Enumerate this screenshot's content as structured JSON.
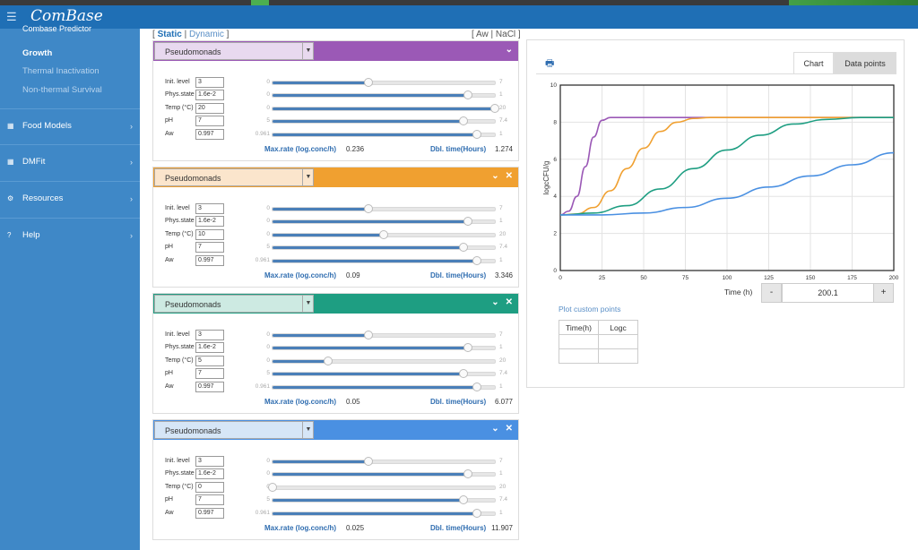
{
  "app": {
    "title": "ComBase"
  },
  "sidebar": {
    "section": "Combase Predictor",
    "subitems": [
      "Growth",
      "Thermal Inactivation",
      "Non-thermal Survival"
    ],
    "items": [
      {
        "label": "Food Models",
        "icon": "grid-icon"
      },
      {
        "label": "DMFit",
        "icon": "grid-icon"
      },
      {
        "label": "Resources",
        "icon": "gears-icon"
      },
      {
        "label": "Help",
        "icon": "question-icon"
      }
    ]
  },
  "mode": {
    "open": "[",
    "static": "Static",
    "sep": "|",
    "dynamic": "Dynamic",
    "close": "]"
  },
  "mode2": {
    "open": "[",
    "aw": "Aw",
    "sep": "|",
    "nacl": "NaCl",
    "close": "]"
  },
  "param_labels": [
    "Init. level",
    "Phys.state",
    "Temp (°C)",
    "pH",
    "Aw"
  ],
  "rate_labels": {
    "maxrate": "Max.rate (log.conc/h)",
    "dbltime": "Dbl. time(Hours)"
  },
  "panels": [
    {
      "organism": "Pseudomonads",
      "color": "#9b59b6",
      "light": "#e8d9ef",
      "controls": [
        "⌄"
      ],
      "values": [
        "3",
        "1.6e-2",
        "20",
        "7",
        "0.997"
      ],
      "mins": [
        "0",
        "0",
        "0",
        "5",
        "0.961"
      ],
      "maxs": [
        "7",
        "1",
        "20",
        "7.4",
        "1"
      ],
      "levels": [
        0.43,
        0.88,
        1.0,
        0.86,
        0.92
      ],
      "maxrate": "0.236",
      "dbltime": "1.274"
    },
    {
      "organism": "Pseudomonads",
      "color": "#f0a030",
      "light": "#fbe5cc",
      "controls": [
        "⌄",
        "✕"
      ],
      "values": [
        "3",
        "1.6e-2",
        "10",
        "7",
        "0.997"
      ],
      "mins": [
        "0",
        "0",
        "0",
        "5",
        "0.961"
      ],
      "maxs": [
        "7",
        "1",
        "20",
        "7.4",
        "1"
      ],
      "levels": [
        0.43,
        0.88,
        0.5,
        0.86,
        0.92
      ],
      "maxrate": "0.09",
      "dbltime": "3.346"
    },
    {
      "organism": "Pseudomonads",
      "color": "#1e9e82",
      "light": "#cdeae2",
      "controls": [
        "⌄",
        "✕"
      ],
      "values": [
        "3",
        "1.6e-2",
        "5",
        "7",
        "0.997"
      ],
      "mins": [
        "0",
        "0",
        "0",
        "5",
        "0.961"
      ],
      "maxs": [
        "7",
        "1",
        "20",
        "7.4",
        "1"
      ],
      "levels": [
        0.43,
        0.88,
        0.25,
        0.86,
        0.92
      ],
      "maxrate": "0.05",
      "dbltime": "6.077"
    },
    {
      "organism": "Pseudomonads",
      "color": "#4a90e2",
      "light": "#d6e6f7",
      "controls": [
        "⌄",
        "✕"
      ],
      "values": [
        "3",
        "1.6e-2",
        "0",
        "7",
        "0.997"
      ],
      "mins": [
        "0",
        "0",
        "0",
        "5",
        "0.961"
      ],
      "maxs": [
        "7",
        "1",
        "20",
        "7.4",
        "1"
      ],
      "levels": [
        0.43,
        0.88,
        0.0,
        0.86,
        0.92
      ],
      "maxrate": "0.025",
      "dbltime": "11.907"
    }
  ],
  "tabs": {
    "chart": "Chart",
    "datapoints": "Data points"
  },
  "time": {
    "label": "Time (h)",
    "minus": "-",
    "value": "200.1",
    "plus": "+"
  },
  "custom": {
    "link": "Plot custom points",
    "headers": [
      "Time(h)",
      "Logc"
    ]
  },
  "chart_data": {
    "type": "line",
    "xlabel": "",
    "ylabel": "logcCFU/g",
    "xlim": [
      0,
      200
    ],
    "ylim": [
      0,
      10
    ],
    "xticks": [
      0,
      25,
      50,
      75,
      100,
      125,
      150,
      175,
      200
    ],
    "yticks": [
      0,
      2,
      4,
      6,
      8,
      10
    ],
    "grid": true,
    "series": [
      {
        "color": "#9b59b6",
        "x": [
          0,
          5,
          10,
          15,
          20,
          25,
          30,
          35,
          200
        ],
        "y": [
          3.0,
          3.2,
          4.0,
          5.6,
          7.2,
          8.1,
          8.25,
          8.25,
          8.25
        ]
      },
      {
        "color": "#f0a030",
        "x": [
          0,
          10,
          20,
          30,
          40,
          50,
          60,
          70,
          80,
          90,
          200
        ],
        "y": [
          3.0,
          3.05,
          3.4,
          4.3,
          5.5,
          6.6,
          7.5,
          8.0,
          8.2,
          8.25,
          8.25
        ]
      },
      {
        "color": "#1e9e82",
        "x": [
          0,
          20,
          40,
          60,
          80,
          100,
          120,
          140,
          160,
          180,
          200
        ],
        "y": [
          3.0,
          3.1,
          3.5,
          4.4,
          5.5,
          6.5,
          7.3,
          7.9,
          8.15,
          8.25,
          8.25
        ]
      },
      {
        "color": "#4a90e2",
        "x": [
          0,
          25,
          50,
          75,
          100,
          125,
          150,
          175,
          200
        ],
        "y": [
          3.0,
          3.0,
          3.1,
          3.4,
          3.9,
          4.5,
          5.1,
          5.7,
          6.35
        ]
      }
    ]
  }
}
